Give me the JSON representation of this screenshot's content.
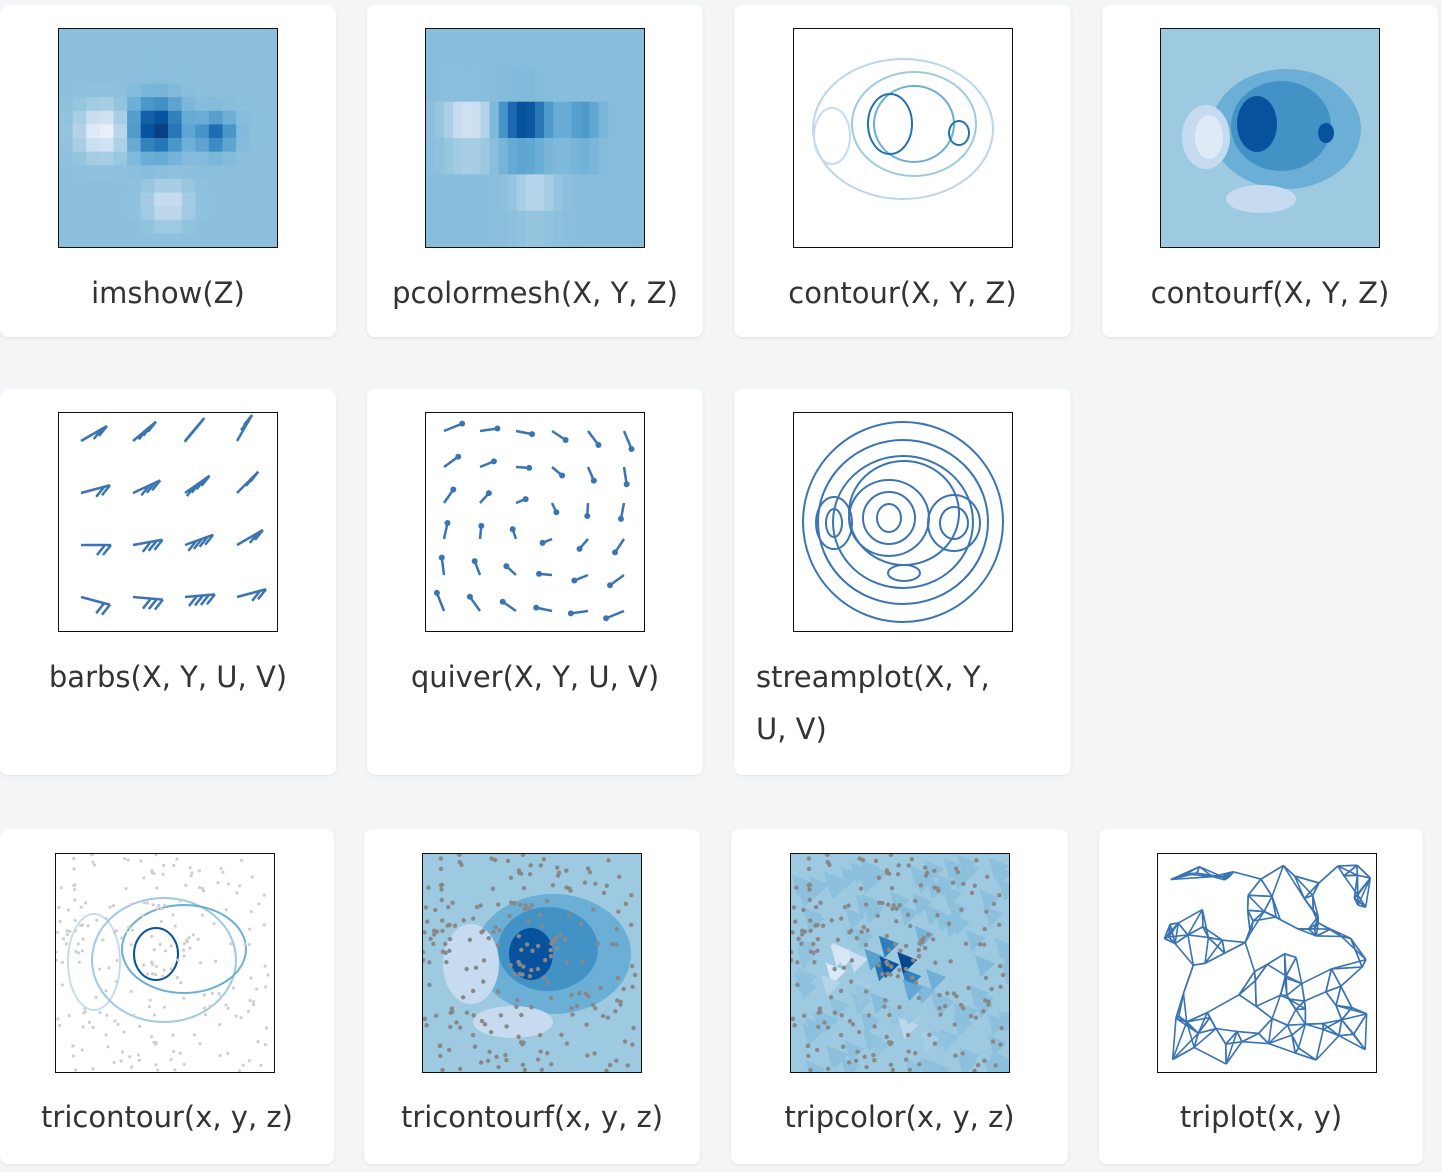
{
  "palette": {
    "blues": [
      "#f7fbff",
      "#deebf7",
      "#c6dbef",
      "#9ecae1",
      "#6baed6",
      "#4292c6",
      "#2171b5",
      "#08519c",
      "#08306b"
    ],
    "line": "#3a74b2",
    "point": "#888888"
  },
  "cards": [
    {
      "label": "imshow(Z)",
      "icon": "imshow-plot"
    },
    {
      "label": "pcolormesh(X, Y, Z)",
      "icon": "pcolormesh-plot"
    },
    {
      "label": "contour(X, Y, Z)",
      "icon": "contour-plot"
    },
    {
      "label": "contourf(X, Y, Z)",
      "icon": "contourf-plot"
    },
    {
      "label": "barbs(X, Y, U, V)",
      "icon": "barbs-plot"
    },
    {
      "label": "quiver(X, Y, U, V)",
      "icon": "quiver-plot"
    },
    {
      "label": "streamplot(X, Y, U, V)",
      "icon": "streamplot-plot"
    },
    {
      "label": "tricontour(x, y, z)",
      "icon": "tricontour-plot"
    },
    {
      "label": "tricontourf(x, y, z)",
      "icon": "tricontourf-plot"
    },
    {
      "label": "tripcolor(x, y, z)",
      "icon": "tripcolor-plot"
    },
    {
      "label": "triplot(x, y)",
      "icon": "triplot-plot"
    }
  ]
}
